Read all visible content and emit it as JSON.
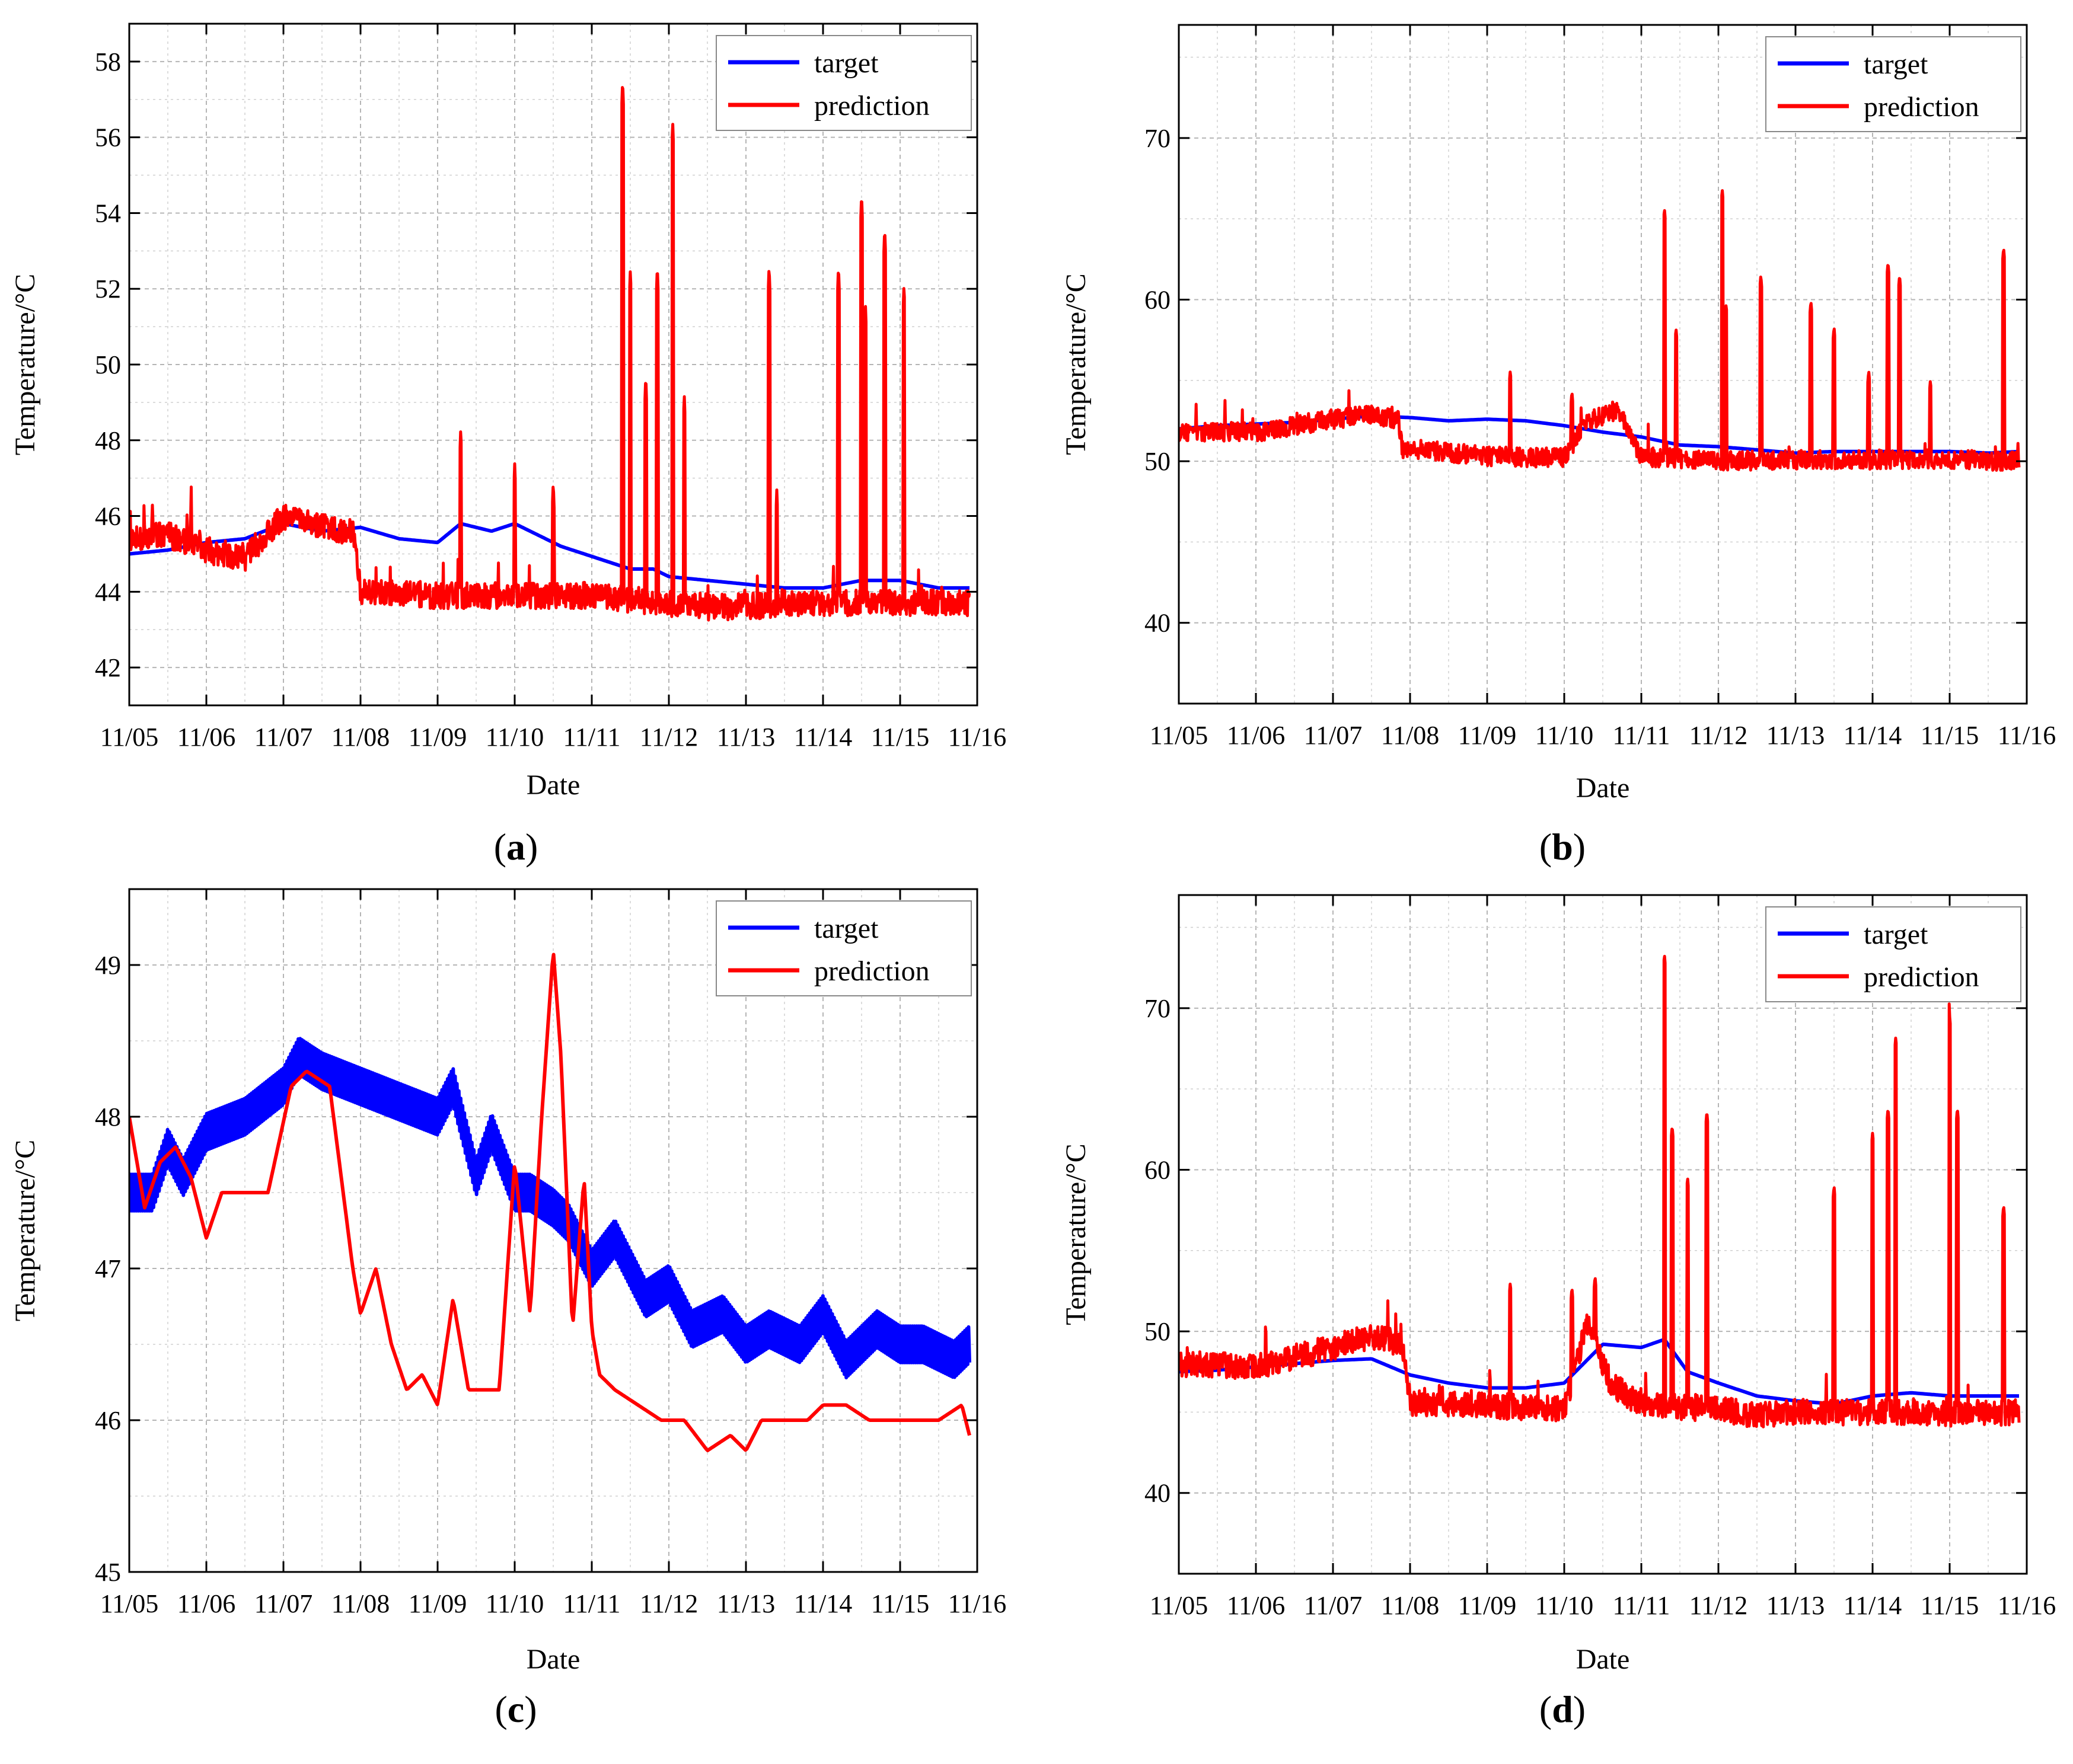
{
  "chart_data": [
    {
      "id": "a",
      "type": "line",
      "panel_label": "a",
      "title": "",
      "xlabel": "Date",
      "ylabel": "Temperature/°C",
      "x_ticks": [
        "11/05",
        "11/06",
        "11/07",
        "11/08",
        "11/09",
        "11/10",
        "11/11",
        "11/12",
        "11/13",
        "11/14",
        "11/15",
        "11/16"
      ],
      "xlim": [
        0,
        11
      ],
      "ylim": [
        41,
        59
      ],
      "y_ticks": [
        42,
        44,
        46,
        48,
        50,
        52,
        54,
        56,
        58
      ],
      "grid": true,
      "legend": "top-right",
      "series": [
        {
          "name": "target",
          "color": "#0000ff",
          "x": [
            0,
            0.5,
            1,
            1.5,
            2,
            2.5,
            3,
            3.5,
            4,
            4.3,
            4.7,
            5,
            5.3,
            5.6,
            5.9,
            6.2,
            6.5,
            6.8,
            7,
            7.5,
            8,
            8.5,
            9,
            9.5,
            10,
            10.5,
            10.9
          ],
          "y": [
            45,
            45.1,
            45.3,
            45.4,
            45.8,
            45.6,
            45.7,
            45.4,
            45.3,
            45.8,
            45.6,
            45.8,
            45.5,
            45.2,
            45.0,
            44.8,
            44.6,
            44.6,
            44.4,
            44.3,
            44.2,
            44.1,
            44.1,
            44.3,
            44.3,
            44.1,
            44.1
          ]
        },
        {
          "name": "prediction",
          "color": "#ff0000",
          "noise": 0.35,
          "baseline_x": [
            0,
            0.5,
            1,
            1.5,
            2,
            2.5,
            2.9,
            3.0,
            4,
            5,
            6,
            7,
            7.5,
            8,
            8.5,
            9,
            9.5,
            10,
            10.5,
            10.9
          ],
          "baseline_y": [
            45.4,
            45.5,
            45.1,
            44.9,
            46.0,
            45.7,
            45.6,
            44.0,
            43.9,
            43.9,
            43.9,
            43.7,
            43.6,
            43.6,
            43.7,
            43.7,
            43.7,
            43.7,
            43.7,
            43.7
          ],
          "spikes": [
            [
              0.3,
              46.3
            ],
            [
              0.8,
              46.2
            ],
            [
              4.3,
              48.3
            ],
            [
              5.0,
              47.4
            ],
            [
              5.5,
              46.9
            ],
            [
              6.4,
              57.5
            ],
            [
              6.5,
              52.5
            ],
            [
              6.7,
              49.7
            ],
            [
              6.85,
              52.6
            ],
            [
              7.05,
              56.4
            ],
            [
              7.2,
              49.2
            ],
            [
              8.3,
              52.6
            ],
            [
              8.4,
              46.7
            ],
            [
              9.2,
              52.6
            ],
            [
              9.5,
              54.5
            ],
            [
              9.55,
              51.6
            ],
            [
              9.8,
              53.6
            ],
            [
              10.05,
              52.1
            ]
          ]
        }
      ]
    },
    {
      "id": "b",
      "type": "line",
      "panel_label": "b",
      "title": "",
      "xlabel": "Date",
      "ylabel": "Temperature/°C",
      "x_ticks": [
        "11/05",
        "11/06",
        "11/07",
        "11/08",
        "11/09",
        "11/10",
        "11/11",
        "11/12",
        "11/13",
        "11/14",
        "11/15",
        "11/16"
      ],
      "xlim": [
        0,
        11
      ],
      "ylim": [
        35,
        77
      ],
      "y_ticks": [
        40,
        50,
        60,
        70
      ],
      "grid": true,
      "legend": "top-right",
      "series": [
        {
          "name": "target",
          "color": "#0000ff",
          "x": [
            0,
            0.5,
            1,
            1.5,
            2,
            2.5,
            3,
            3.5,
            4,
            4.5,
            5,
            5.5,
            6,
            6.5,
            7,
            7.5,
            8,
            8.5,
            9,
            9.5,
            10,
            10.5,
            10.9
          ],
          "y": [
            52,
            52.2,
            52.3,
            52.4,
            52.6,
            52.8,
            52.7,
            52.5,
            52.6,
            52.5,
            52.2,
            51.8,
            51.5,
            51.0,
            50.9,
            50.7,
            50.5,
            50.6,
            50.6,
            50.6,
            50.6,
            50.5,
            50.6
          ]
        },
        {
          "name": "prediction",
          "color": "#ff0000",
          "noise": 0.6,
          "baseline_x": [
            0,
            1,
            2,
            2.5,
            2.85,
            2.9,
            4,
            5,
            5.3,
            5.7,
            6,
            7,
            8,
            9,
            10,
            10.9
          ],
          "baseline_y": [
            51.8,
            51.8,
            52.6,
            52.9,
            52.5,
            50.8,
            50.3,
            50.2,
            52.5,
            53.2,
            50.3,
            50.0,
            50.1,
            50.1,
            50.1,
            50.0
          ],
          "spikes": [
            [
              4.3,
              55.6
            ],
            [
              5.1,
              54.3
            ],
            [
              6.3,
              65.6
            ],
            [
              6.45,
              58.2
            ],
            [
              7.05,
              66.8
            ],
            [
              7.1,
              59.7
            ],
            [
              7.55,
              61.5
            ],
            [
              8.2,
              59.9
            ],
            [
              8.5,
              58.3
            ],
            [
              8.95,
              55.6
            ],
            [
              9.2,
              62.3
            ],
            [
              9.35,
              61.5
            ],
            [
              9.75,
              55.0
            ],
            [
              10.7,
              63.2
            ]
          ]
        }
      ]
    },
    {
      "id": "c",
      "type": "line",
      "panel_label": "c",
      "title": "",
      "xlabel": "Date",
      "ylabel": "Temperature/°C",
      "x_ticks": [
        "11/05",
        "11/06",
        "11/07",
        "11/08",
        "11/09",
        "11/10",
        "11/11",
        "11/12",
        "11/13",
        "11/14",
        "11/15",
        "11/16"
      ],
      "xlim": [
        0,
        11
      ],
      "ylim": [
        45,
        49.5
      ],
      "y_ticks": [
        45,
        46,
        47,
        48,
        49
      ],
      "grid": true,
      "legend": "top-right",
      "series": [
        {
          "name": "target",
          "color": "#0000ff",
          "band": 0.12,
          "x": [
            0,
            0.3,
            0.5,
            0.7,
            1,
            1.5,
            2,
            2.2,
            2.5,
            3,
            3.5,
            4,
            4.2,
            4.5,
            4.7,
            5,
            5.2,
            5.5,
            5.7,
            6,
            6.3,
            6.7,
            7,
            7.3,
            7.7,
            8,
            8.3,
            8.7,
            9,
            9.3,
            9.7,
            10,
            10.3,
            10.7,
            10.9
          ],
          "y": [
            47.5,
            47.5,
            47.8,
            47.6,
            47.9,
            48.0,
            48.2,
            48.4,
            48.3,
            48.2,
            48.1,
            48.0,
            48.2,
            47.6,
            47.9,
            47.5,
            47.5,
            47.4,
            47.3,
            47.0,
            47.2,
            46.8,
            46.9,
            46.6,
            46.7,
            46.5,
            46.6,
            46.5,
            46.7,
            46.4,
            46.6,
            46.5,
            46.5,
            46.4,
            46.5
          ]
        },
        {
          "name": "prediction",
          "color": "#ff0000",
          "band": 0,
          "x": [
            0,
            0.2,
            0.4,
            0.6,
            0.8,
            1,
            1.2,
            1.5,
            1.8,
            2.1,
            2.3,
            2.6,
            2.9,
            3,
            3.2,
            3.4,
            3.6,
            3.8,
            4,
            4.2,
            4.4,
            4.6,
            4.8,
            5,
            5.1,
            5.2,
            5.35,
            5.5,
            5.6,
            5.75,
            5.9,
            6,
            6.1,
            6.3,
            6.6,
            6.9,
            7.2,
            7.5,
            7.8,
            8,
            8.2,
            8.5,
            8.8,
            9,
            9.3,
            9.6,
            9.9,
            10.2,
            10.5,
            10.8,
            10.9
          ],
          "y": [
            48.0,
            47.4,
            47.7,
            47.8,
            47.6,
            47.2,
            47.5,
            47.5,
            47.5,
            48.2,
            48.3,
            48.2,
            47.0,
            46.7,
            47.0,
            46.5,
            46.2,
            46.3,
            46.1,
            46.8,
            46.2,
            46.2,
            46.2,
            47.7,
            47.2,
            46.7,
            48.0,
            49.1,
            48.4,
            46.6,
            47.6,
            46.6,
            46.3,
            46.2,
            46.1,
            46.0,
            46.0,
            45.8,
            45.9,
            45.8,
            46.0,
            46.0,
            46.0,
            46.1,
            46.1,
            46.0,
            46.0,
            46.0,
            46.0,
            46.1,
            45.9
          ]
        }
      ]
    },
    {
      "id": "d",
      "type": "line",
      "panel_label": "d",
      "title": "",
      "xlabel": "Date",
      "ylabel": "Temperature/°C",
      "x_ticks": [
        "11/05",
        "11/06",
        "11/07",
        "11/08",
        "11/09",
        "11/10",
        "11/11",
        "11/12",
        "11/13",
        "11/14",
        "11/15",
        "11/16"
      ],
      "xlim": [
        0,
        11
      ],
      "ylim": [
        35,
        77
      ],
      "y_ticks": [
        40,
        50,
        60,
        70
      ],
      "grid": true,
      "legend": "top-right",
      "series": [
        {
          "name": "target",
          "color": "#0000ff",
          "x": [
            0,
            0.5,
            1,
            1.5,
            2,
            2.5,
            3,
            3.5,
            4,
            4.5,
            5,
            5.5,
            6,
            6.3,
            6.6,
            7,
            7.5,
            8,
            8.5,
            9,
            9.5,
            10,
            10.5,
            10.9
          ],
          "y": [
            47.5,
            47.6,
            47.8,
            48.0,
            48.2,
            48.3,
            47.3,
            46.8,
            46.5,
            46.5,
            46.8,
            49.2,
            49.0,
            49.5,
            47.5,
            46.8,
            46.0,
            45.7,
            45.5,
            46.0,
            46.2,
            46.0,
            46.0,
            46.0
          ]
        },
        {
          "name": "prediction",
          "color": "#ff0000",
          "noise": 0.8,
          "baseline_x": [
            0,
            1,
            2,
            2.5,
            2.9,
            3.0,
            4,
            5,
            5.3,
            5.6,
            6,
            7,
            7.5,
            8,
            9,
            10,
            10.9
          ],
          "baseline_y": [
            48.0,
            47.8,
            49.0,
            49.7,
            49.2,
            45.6,
            45.4,
            45.2,
            50.5,
            46.8,
            45.4,
            45.2,
            44.8,
            45.0,
            45.0,
            44.9,
            45.0
          ],
          "spikes": [
            [
              4.3,
              53.0
            ],
            [
              5.1,
              52.7
            ],
            [
              5.4,
              53.4
            ],
            [
              6.3,
              73.3
            ],
            [
              6.4,
              62.7
            ],
            [
              6.6,
              59.5
            ],
            [
              6.85,
              63.6
            ],
            [
              8.5,
              59.0
            ],
            [
              9.0,
              62.3
            ],
            [
              9.2,
              63.8
            ],
            [
              9.3,
              68.2
            ],
            [
              10.0,
              69.5
            ],
            [
              10.1,
              63.8
            ],
            [
              10.7,
              57.8
            ]
          ]
        }
      ]
    }
  ]
}
